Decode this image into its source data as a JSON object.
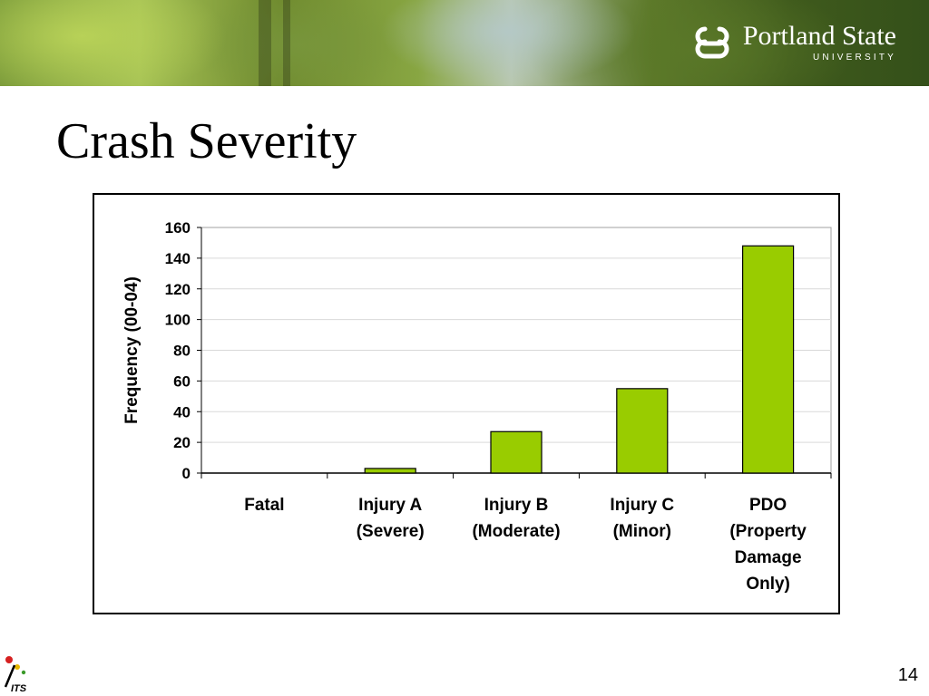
{
  "banner": {
    "logo_name": "Portland State",
    "logo_sub": "UNIVERSITY"
  },
  "slide": {
    "title": "Crash Severity",
    "page_number": "14"
  },
  "footer": {
    "its_logo_text": "ITS"
  },
  "colors": {
    "bar_fill": "#99CC00",
    "bar_stroke": "#000000",
    "grid": "#d9d9d9"
  },
  "chart_data": {
    "type": "bar",
    "categories": [
      [
        "Fatal"
      ],
      [
        "Injury A",
        "(Severe)"
      ],
      [
        "Injury B",
        "(Moderate)"
      ],
      [
        "Injury C",
        "(Minor)"
      ],
      [
        "PDO",
        "(Property",
        "Damage",
        "Only)"
      ]
    ],
    "values": [
      0,
      3,
      27,
      55,
      148
    ],
    "title": "",
    "xlabel": "",
    "ylabel": "Frequency (00-04)",
    "ylim": [
      0,
      160
    ],
    "yticks": [
      "0",
      "20",
      "40",
      "60",
      "80",
      "100",
      "120",
      "140",
      "160"
    ],
    "grid": true,
    "legend": "none"
  }
}
